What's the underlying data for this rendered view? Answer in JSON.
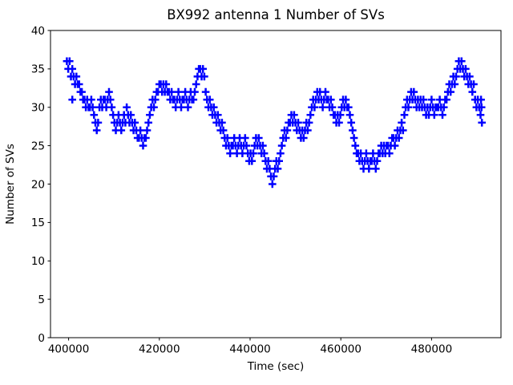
{
  "chart_data": {
    "type": "scatter",
    "title": "BX992 antenna 1 Number of SVs",
    "xlabel": "Time (sec)",
    "ylabel": "Number of SVs",
    "xlim": [
      396000,
      495300
    ],
    "ylim": [
      0,
      40
    ],
    "xticks": [
      400000,
      420000,
      440000,
      460000,
      480000
    ],
    "yticks": [
      0,
      5,
      10,
      15,
      20,
      25,
      30,
      35,
      40
    ],
    "grid": false,
    "legend": "none",
    "marker": "plus",
    "marker_color": "#0000ff",
    "axis_color": "#000000",
    "points": [
      [
        399600,
        36
      ],
      [
        399900,
        35
      ],
      [
        400200,
        36
      ],
      [
        400500,
        34
      ],
      [
        400800,
        35
      ],
      [
        400800,
        31
      ],
      [
        401100,
        34
      ],
      [
        401400,
        33
      ],
      [
        401700,
        34
      ],
      [
        402000,
        33
      ],
      [
        402300,
        33
      ],
      [
        402600,
        32
      ],
      [
        402900,
        32
      ],
      [
        403200,
        31
      ],
      [
        403500,
        31
      ],
      [
        403800,
        30
      ],
      [
        404100,
        31
      ],
      [
        404400,
        30
      ],
      [
        404700,
        30
      ],
      [
        405000,
        31
      ],
      [
        405300,
        30
      ],
      [
        405600,
        29
      ],
      [
        405900,
        28
      ],
      [
        406200,
        27
      ],
      [
        406500,
        28
      ],
      [
        406800,
        30
      ],
      [
        407100,
        31
      ],
      [
        407400,
        30
      ],
      [
        407700,
        31
      ],
      [
        408000,
        31
      ],
      [
        408300,
        30
      ],
      [
        408600,
        31
      ],
      [
        408900,
        32
      ],
      [
        409200,
        31
      ],
      [
        409500,
        30
      ],
      [
        409800,
        29
      ],
      [
        410100,
        28
      ],
      [
        410400,
        27
      ],
      [
        410700,
        28
      ],
      [
        411000,
        29
      ],
      [
        411300,
        28
      ],
      [
        411600,
        27
      ],
      [
        411900,
        28
      ],
      [
        412200,
        29
      ],
      [
        412500,
        28
      ],
      [
        412800,
        30
      ],
      [
        413100,
        29
      ],
      [
        413400,
        28
      ],
      [
        413700,
        29
      ],
      [
        414000,
        28
      ],
      [
        414300,
        27
      ],
      [
        414600,
        28
      ],
      [
        414900,
        27
      ],
      [
        415200,
        26
      ],
      [
        415500,
        26
      ],
      [
        415800,
        27
      ],
      [
        416100,
        26
      ],
      [
        416400,
        25
      ],
      [
        416700,
        26
      ],
      [
        417000,
        26
      ],
      [
        417300,
        27
      ],
      [
        417600,
        28
      ],
      [
        417900,
        29
      ],
      [
        418200,
        30
      ],
      [
        418500,
        31
      ],
      [
        418800,
        30
      ],
      [
        419100,
        31
      ],
      [
        419400,
        32
      ],
      [
        419700,
        32
      ],
      [
        420000,
        33
      ],
      [
        420300,
        33
      ],
      [
        420600,
        32
      ],
      [
        420900,
        33
      ],
      [
        421200,
        32
      ],
      [
        421500,
        33
      ],
      [
        421800,
        32
      ],
      [
        422100,
        32
      ],
      [
        422400,
        31
      ],
      [
        422700,
        32
      ],
      [
        423000,
        31
      ],
      [
        423300,
        31
      ],
      [
        423600,
        30
      ],
      [
        423900,
        31
      ],
      [
        424200,
        32
      ],
      [
        424500,
        31
      ],
      [
        424800,
        30
      ],
      [
        425100,
        31
      ],
      [
        425400,
        31
      ],
      [
        425700,
        32
      ],
      [
        426000,
        31
      ],
      [
        426300,
        30
      ],
      [
        426600,
        31
      ],
      [
        426900,
        32
      ],
      [
        427200,
        31
      ],
      [
        427500,
        31
      ],
      [
        427800,
        32
      ],
      [
        428100,
        33
      ],
      [
        428400,
        34
      ],
      [
        428700,
        35
      ],
      [
        429000,
        35
      ],
      [
        429300,
        34
      ],
      [
        429600,
        35
      ],
      [
        429900,
        34
      ],
      [
        430200,
        32
      ],
      [
        430500,
        31
      ],
      [
        430800,
        30
      ],
      [
        431100,
        31
      ],
      [
        431400,
        30
      ],
      [
        431700,
        29
      ],
      [
        432000,
        30
      ],
      [
        432300,
        29
      ],
      [
        432600,
        28
      ],
      [
        432900,
        29
      ],
      [
        433200,
        28
      ],
      [
        433500,
        27
      ],
      [
        433800,
        28
      ],
      [
        434100,
        27
      ],
      [
        434400,
        26
      ],
      [
        434700,
        25
      ],
      [
        435000,
        26
      ],
      [
        435300,
        25
      ],
      [
        435600,
        24
      ],
      [
        435900,
        25
      ],
      [
        436200,
        25
      ],
      [
        436500,
        26
      ],
      [
        436800,
        25
      ],
      [
        437100,
        24
      ],
      [
        437400,
        25
      ],
      [
        437700,
        26
      ],
      [
        438000,
        25
      ],
      [
        438300,
        24
      ],
      [
        438600,
        25
      ],
      [
        438900,
        26
      ],
      [
        439200,
        25
      ],
      [
        439500,
        24
      ],
      [
        439800,
        23
      ],
      [
        440100,
        24
      ],
      [
        440400,
        23
      ],
      [
        440700,
        24
      ],
      [
        441000,
        25
      ],
      [
        441300,
        26
      ],
      [
        441600,
        25
      ],
      [
        441900,
        26
      ],
      [
        442200,
        25
      ],
      [
        442500,
        24
      ],
      [
        442800,
        25
      ],
      [
        443100,
        24
      ],
      [
        443400,
        23
      ],
      [
        443700,
        22
      ],
      [
        444000,
        23
      ],
      [
        444300,
        22
      ],
      [
        444600,
        21
      ],
      [
        444900,
        20
      ],
      [
        445200,
        21
      ],
      [
        445500,
        22
      ],
      [
        445800,
        23
      ],
      [
        446100,
        22
      ],
      [
        446400,
        23
      ],
      [
        446700,
        24
      ],
      [
        447000,
        25
      ],
      [
        447300,
        26
      ],
      [
        447600,
        27
      ],
      [
        447900,
        26
      ],
      [
        448200,
        27
      ],
      [
        448500,
        28
      ],
      [
        448800,
        28
      ],
      [
        449100,
        29
      ],
      [
        449400,
        28
      ],
      [
        449700,
        29
      ],
      [
        450000,
        28
      ],
      [
        450300,
        27
      ],
      [
        450600,
        28
      ],
      [
        450900,
        27
      ],
      [
        451200,
        26
      ],
      [
        451500,
        27
      ],
      [
        451800,
        26
      ],
      [
        452100,
        27
      ],
      [
        452400,
        28
      ],
      [
        452700,
        27
      ],
      [
        453000,
        28
      ],
      [
        453300,
        29
      ],
      [
        453600,
        30
      ],
      [
        453900,
        31
      ],
      [
        454200,
        30
      ],
      [
        454500,
        31
      ],
      [
        454800,
        32
      ],
      [
        455100,
        31
      ],
      [
        455400,
        32
      ],
      [
        455700,
        31
      ],
      [
        456000,
        30
      ],
      [
        456300,
        31
      ],
      [
        456600,
        32
      ],
      [
        456900,
        31
      ],
      [
        457200,
        31
      ],
      [
        457500,
        30
      ],
      [
        457800,
        31
      ],
      [
        458100,
        30
      ],
      [
        458400,
        29
      ],
      [
        458700,
        29
      ],
      [
        459000,
        28
      ],
      [
        459300,
        29
      ],
      [
        459600,
        28
      ],
      [
        459900,
        29
      ],
      [
        460200,
        30
      ],
      [
        460500,
        31
      ],
      [
        460800,
        30
      ],
      [
        461100,
        31
      ],
      [
        461400,
        30
      ],
      [
        461700,
        30
      ],
      [
        462000,
        29
      ],
      [
        462300,
        28
      ],
      [
        462600,
        27
      ],
      [
        462900,
        26
      ],
      [
        463200,
        25
      ],
      [
        463500,
        24
      ],
      [
        463800,
        24
      ],
      [
        464100,
        23
      ],
      [
        464400,
        24
      ],
      [
        464700,
        23
      ],
      [
        465000,
        22
      ],
      [
        465300,
        23
      ],
      [
        465600,
        24
      ],
      [
        465900,
        23
      ],
      [
        466200,
        22
      ],
      [
        466500,
        23
      ],
      [
        466800,
        23
      ],
      [
        467100,
        24
      ],
      [
        467400,
        23
      ],
      [
        467700,
        22
      ],
      [
        468000,
        23
      ],
      [
        468300,
        24
      ],
      [
        468600,
        24
      ],
      [
        468900,
        25
      ],
      [
        469200,
        24
      ],
      [
        469500,
        25
      ],
      [
        469800,
        24
      ],
      [
        470100,
        25
      ],
      [
        470400,
        25
      ],
      [
        470700,
        24
      ],
      [
        471000,
        25
      ],
      [
        471300,
        26
      ],
      [
        471600,
        26
      ],
      [
        471900,
        25
      ],
      [
        472200,
        26
      ],
      [
        472500,
        27
      ],
      [
        472800,
        26
      ],
      [
        473100,
        27
      ],
      [
        473400,
        28
      ],
      [
        473700,
        27
      ],
      [
        474000,
        29
      ],
      [
        474300,
        30
      ],
      [
        474600,
        31
      ],
      [
        474900,
        30
      ],
      [
        475200,
        31
      ],
      [
        475500,
        32
      ],
      [
        475800,
        31
      ],
      [
        476100,
        32
      ],
      [
        476400,
        31
      ],
      [
        476700,
        30
      ],
      [
        477000,
        31
      ],
      [
        477300,
        30
      ],
      [
        477600,
        31
      ],
      [
        477900,
        30
      ],
      [
        478200,
        31
      ],
      [
        478500,
        30
      ],
      [
        478800,
        29
      ],
      [
        479100,
        30
      ],
      [
        479400,
        29
      ],
      [
        479700,
        30
      ],
      [
        480000,
        31
      ],
      [
        480300,
        30
      ],
      [
        480600,
        29
      ],
      [
        480900,
        30
      ],
      [
        481200,
        30
      ],
      [
        481500,
        30
      ],
      [
        481800,
        31
      ],
      [
        482100,
        30
      ],
      [
        482400,
        29
      ],
      [
        482700,
        30
      ],
      [
        483000,
        31
      ],
      [
        483300,
        31
      ],
      [
        483600,
        32
      ],
      [
        483900,
        33
      ],
      [
        484200,
        32
      ],
      [
        484500,
        33
      ],
      [
        484800,
        34
      ],
      [
        485100,
        33
      ],
      [
        485400,
        34
      ],
      [
        485700,
        35
      ],
      [
        486000,
        36
      ],
      [
        486300,
        35
      ],
      [
        486600,
        36
      ],
      [
        486900,
        35
      ],
      [
        487200,
        34
      ],
      [
        487500,
        35
      ],
      [
        487800,
        34
      ],
      [
        488100,
        33
      ],
      [
        488400,
        34
      ],
      [
        488700,
        33
      ],
      [
        489000,
        32
      ],
      [
        489300,
        33
      ],
      [
        489600,
        31
      ],
      [
        489900,
        30
      ],
      [
        490200,
        31
      ],
      [
        490500,
        30
      ],
      [
        490800,
        29
      ],
      [
        490900,
        31
      ],
      [
        491000,
        30
      ],
      [
        491100,
        28
      ]
    ]
  }
}
